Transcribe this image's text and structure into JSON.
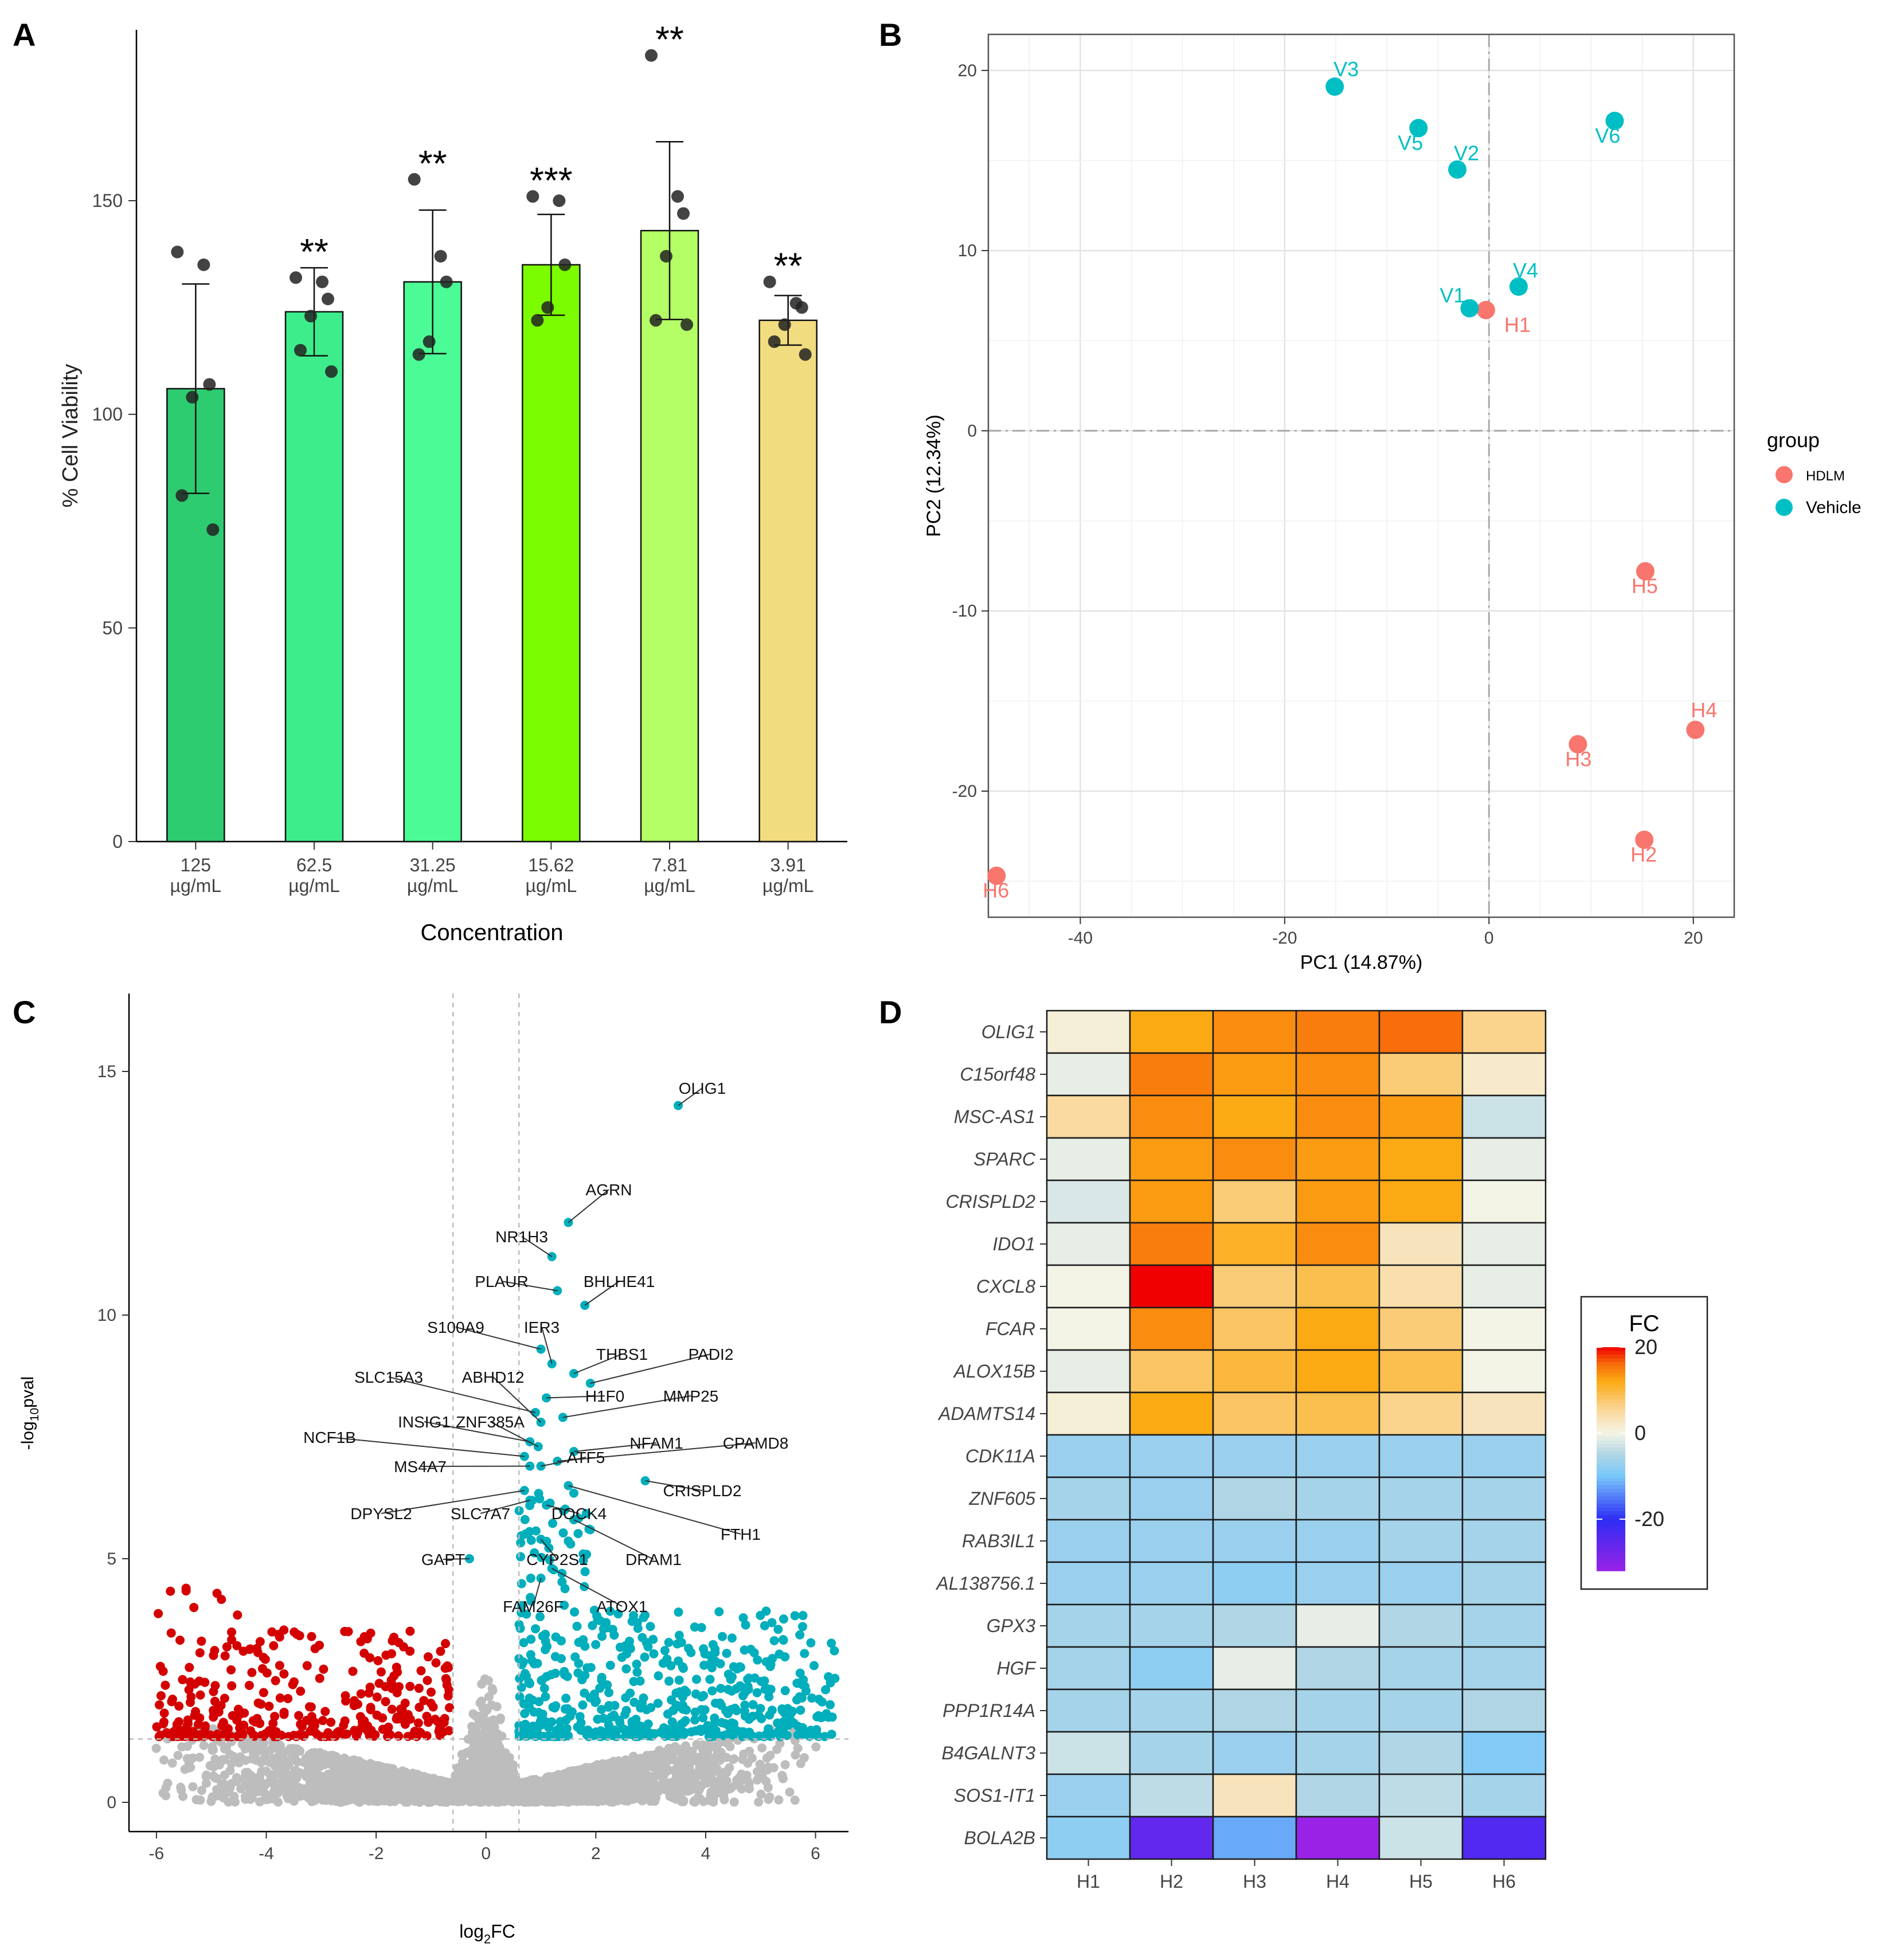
{
  "panels": [
    "A",
    "B",
    "C",
    "D"
  ],
  "chart_data": [
    {
      "panel": "A",
      "type": "bar",
      "xlabel": "Concentration",
      "ylabel": "% Cell Viability",
      "ylim": [
        0,
        190
      ],
      "yticks": [
        0,
        50,
        100,
        150
      ],
      "categories": [
        [
          "125",
          "µg/mL"
        ],
        [
          "62.5",
          "µg/mL"
        ],
        [
          "31.25",
          "µg/mL"
        ],
        [
          "15.62",
          "µg/mL"
        ],
        [
          "7.81",
          "µg/mL"
        ],
        [
          "3.91",
          "µg/mL"
        ]
      ],
      "values": [
        106,
        124,
        131,
        135,
        143,
        122
      ],
      "errors": [
        24.5,
        10.3,
        16.8,
        11.8,
        20.8,
        5.8
      ],
      "significance": [
        "",
        "**",
        "**",
        "***",
        "**",
        "**"
      ],
      "colors": [
        "#2ecc71",
        "#3ded8b",
        "#4bfb96",
        "#7cfc00",
        "#b4ff66",
        "#f2dc80"
      ],
      "points": [
        [
          138,
          135,
          107,
          104,
          81,
          73
        ],
        [
          132,
          131,
          127,
          123,
          115,
          110
        ],
        [
          155,
          137,
          131,
          117,
          114
        ],
        [
          151,
          150,
          135,
          125,
          122
        ],
        [
          184,
          151,
          147,
          137,
          122,
          121
        ],
        [
          131,
          126,
          125,
          121,
          117,
          114
        ]
      ]
    },
    {
      "panel": "B",
      "type": "scatter",
      "xlabel": "PC1 (14.87%)",
      "ylabel": "PC2 (12.34%)",
      "xlim": [
        -49,
        24
      ],
      "ylim": [
        -27,
        22
      ],
      "xticks": [
        -40,
        -20,
        0,
        20
      ],
      "yticks": [
        20,
        10,
        0,
        -10,
        -20
      ],
      "legend": {
        "title": "group",
        "position": "right",
        "items": [
          {
            "label": "HDLM",
            "color": "#f8766d"
          },
          {
            "label": "Vehicle",
            "color": "#00bfc4"
          }
        ]
      },
      "series": [
        {
          "name": "HDLM",
          "color": "#f8766d",
          "points": [
            {
              "label": "H1",
              "x": -0.3,
              "y": 6.7
            },
            {
              "label": "H2",
              "x": 15.2,
              "y": -22.7
            },
            {
              "label": "H3",
              "x": 8.7,
              "y": -17.4
            },
            {
              "label": "H4",
              "x": 20.2,
              "y": -16.6
            },
            {
              "label": "H5",
              "x": 15.3,
              "y": -7.8
            },
            {
              "label": "H6",
              "x": -48.2,
              "y": -24.7
            }
          ]
        },
        {
          "name": "Vehicle",
          "color": "#00bfc4",
          "points": [
            {
              "label": "V1",
              "x": -1.9,
              "y": 6.8
            },
            {
              "label": "V2",
              "x": -3.1,
              "y": 14.5
            },
            {
              "label": "V3",
              "x": -15.1,
              "y": 19.1
            },
            {
              "label": "V4",
              "x": 2.9,
              "y": 8.0
            },
            {
              "label": "V5",
              "x": -6.9,
              "y": 16.8
            },
            {
              "label": "V6",
              "x": 12.3,
              "y": 17.2
            }
          ]
        }
      ]
    },
    {
      "panel": "C",
      "type": "scatter",
      "subtype": "volcano",
      "xlabel_main": "log",
      "xlabel_sub": "2",
      "xlabel_tail": "FC",
      "ylabel_main": "-log",
      "ylabel_sub": "10",
      "ylabel_tail": "pval",
      "xlim": [
        -6.5,
        6.6
      ],
      "ylim": [
        -0.6,
        16.6
      ],
      "xticks": [
        -6,
        -4,
        -2,
        0,
        2,
        4,
        6
      ],
      "yticks": [
        0,
        5,
        10,
        15
      ],
      "thresholds": {
        "fc": 0.6,
        "p": 1.3
      },
      "colors": {
        "up": "#00aebc",
        "down": "#d40000",
        "ns": "#bdbdbd"
      },
      "labeled_genes": [
        {
          "gene": "OLIG1",
          "x": 3.5,
          "y": 14.3
        },
        {
          "gene": "AGRN",
          "x": 1.5,
          "y": 11.9
        },
        {
          "gene": "NR1H3",
          "x": 1.2,
          "y": 11.2
        },
        {
          "gene": "PLAUR",
          "x": 1.3,
          "y": 10.5
        },
        {
          "gene": "BHLHE41",
          "x": 1.8,
          "y": 10.2
        },
        {
          "gene": "S100A9",
          "x": 1.0,
          "y": 9.3
        },
        {
          "gene": "IER3",
          "x": 1.2,
          "y": 9.0
        },
        {
          "gene": "THBS1",
          "x": 1.6,
          "y": 8.8
        },
        {
          "gene": "PADI2",
          "x": 1.9,
          "y": 8.6
        },
        {
          "gene": "SLC15A3",
          "x": 0.9,
          "y": 8.0
        },
        {
          "gene": "ABHD12",
          "x": 1.0,
          "y": 7.8
        },
        {
          "gene": "H1F0",
          "x": 1.1,
          "y": 8.3
        },
        {
          "gene": "MMP25",
          "x": 1.4,
          "y": 7.9
        },
        {
          "gene": "INSIG1",
          "x": 0.8,
          "y": 7.4
        },
        {
          "gene": "ZNF385A",
          "x": 0.95,
          "y": 7.3
        },
        {
          "gene": "NCF1B",
          "x": 0.7,
          "y": 7.1
        },
        {
          "gene": "NFAM1",
          "x": 1.6,
          "y": 7.2
        },
        {
          "gene": "CPAMD8",
          "x": 1.3,
          "y": 7.0
        },
        {
          "gene": "MS4A7",
          "x": 0.8,
          "y": 6.9
        },
        {
          "gene": "ATF5",
          "x": 1.0,
          "y": 6.9
        },
        {
          "gene": "CRISPLD2",
          "x": 2.9,
          "y": 6.6
        },
        {
          "gene": "DPYSL2",
          "x": 0.7,
          "y": 6.4
        },
        {
          "gene": "SLC7A7",
          "x": 0.8,
          "y": 6.2
        },
        {
          "gene": "DOCK4",
          "x": 1.1,
          "y": 6.1
        },
        {
          "gene": "FTH1",
          "x": 1.5,
          "y": 6.5
        },
        {
          "gene": "GAPT",
          "x": -0.3,
          "y": 5.0
        },
        {
          "gene": "CYP2S1",
          "x": 1.0,
          "y": 5.4
        },
        {
          "gene": "DRAM1",
          "x": 1.6,
          "y": 5.8
        },
        {
          "gene": "FAM26F",
          "x": 1.0,
          "y": 4.6
        },
        {
          "gene": "ATOX1",
          "x": 1.2,
          "y": 4.8
        }
      ]
    },
    {
      "panel": "D",
      "type": "heatmap",
      "columns": [
        "H1",
        "H2",
        "H3",
        "H4",
        "H5",
        "H6"
      ],
      "rows": [
        "OLIG1",
        "C15orf48",
        "MSC-AS1",
        "SPARC",
        "CRISPLD2",
        "IDO1",
        "CXCL8",
        "FCAR",
        "ALOX15B",
        "ADAMTS14",
        "CDK11A",
        "ZNF605",
        "RAB3IL1",
        "AL138756.1",
        "GPX3",
        "HGF",
        "PPP1R14A",
        "B4GALNT3",
        "SOS1-IT1",
        "BOLA2B"
      ],
      "values": [
        [
          1,
          12,
          14,
          15,
          16,
          6
        ],
        [
          -1,
          15,
          13,
          14,
          7,
          2
        ],
        [
          5,
          14,
          12,
          14,
          13,
          -3
        ],
        [
          -1,
          13,
          14,
          13,
          12,
          -1
        ],
        [
          -2,
          13,
          7,
          13,
          12,
          0
        ],
        [
          -1,
          15,
          11,
          14,
          3,
          -1
        ],
        [
          0,
          20,
          7,
          9,
          4,
          -1
        ],
        [
          0,
          14,
          8,
          12,
          7,
          0
        ],
        [
          -1,
          8,
          10,
          12,
          9,
          0
        ],
        [
          1,
          12,
          8,
          9,
          6,
          3
        ],
        [
          -7,
          -7,
          -7,
          -7,
          -7,
          -7
        ],
        [
          -6,
          -7,
          -5,
          -6,
          -6,
          -6
        ],
        [
          -7,
          -7,
          -7,
          -7,
          -6,
          -6
        ],
        [
          -7,
          -7,
          -8,
          -7,
          -7,
          -6
        ],
        [
          -6,
          -6,
          -5,
          -1,
          -5,
          -6
        ],
        [
          -6,
          -8,
          -1,
          -5,
          -6,
          -6
        ],
        [
          -6,
          -6,
          -5,
          -6,
          -6,
          -5
        ],
        [
          -3,
          -6,
          -7,
          -6,
          -5,
          -9
        ],
        [
          -7,
          -4,
          3,
          -5,
          -4,
          -6
        ],
        [
          -8,
          -26,
          -12,
          -32,
          -3,
          -24
        ]
      ],
      "legend": {
        "title": "FC",
        "ticks": [
          20,
          0,
          -20
        ],
        "min": -32,
        "max": 20
      }
    }
  ]
}
